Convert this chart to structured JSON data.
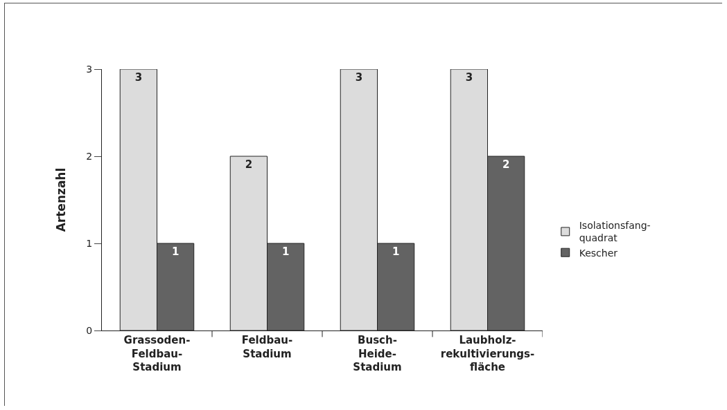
{
  "chart_data": {
    "type": "bar",
    "ylabel": "Artenzahl",
    "categories": [
      "Grassoden-\nFeldbau-\nStadium",
      "Feldbau-\nStadium",
      "Busch-\nHeide-\nStadium",
      "Laubholz-\nrekultivierungs-\nfläche"
    ],
    "series": [
      {
        "name": "Isolationsfang-\nquadrat",
        "color": "#dcdcdc",
        "values": [
          3,
          2,
          3,
          3
        ]
      },
      {
        "name": "Kescher",
        "color": "#636363",
        "values": [
          1,
          1,
          1,
          2
        ]
      }
    ],
    "ylim": [
      0,
      3
    ],
    "yticks": [
      0,
      1,
      2,
      3
    ],
    "grid": false,
    "legend": "right",
    "data_labels": true
  }
}
